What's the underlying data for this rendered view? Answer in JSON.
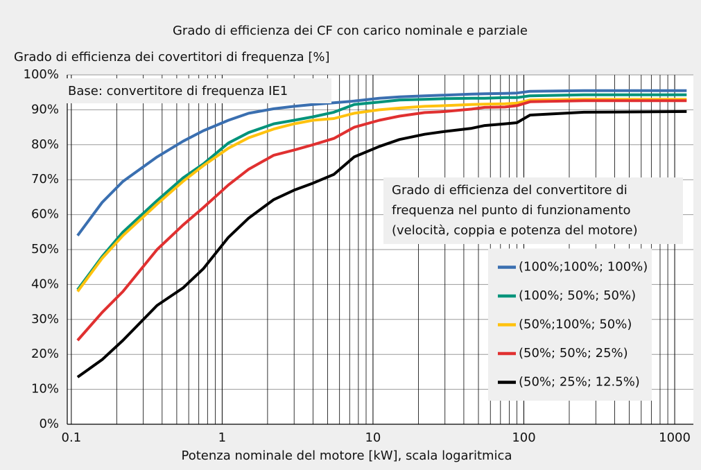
{
  "chart_data": {
    "type": "line",
    "title": "Grado di efficienza dei CF con carico nominale e parziale",
    "y_label": "Grado di efficienza dei covertitori di frequenza [%]",
    "x_label": "Potenza nominale del motore [kW], scala logaritmica",
    "annotations": [
      "Base: convertitore di frequenza IE1"
    ],
    "note_lines": [
      "Grado di efficienza del convertitore di",
      "frequenza nel punto di funzionamento",
      "(velocità, coppia e potenza del motore)"
    ],
    "x_scale": "log",
    "grid": true,
    "legend": "lower right",
    "xlim": [
      0.094,
      1330
    ],
    "xticks": [
      0.1,
      1,
      10,
      100,
      1000
    ],
    "ylim": [
      0,
      100
    ],
    "yticks": [
      {
        "value": 0,
        "label": "0%"
      },
      {
        "value": 10,
        "label": "10%"
      },
      {
        "value": 20,
        "label": "20%"
      },
      {
        "value": 30,
        "label": "30%"
      },
      {
        "value": 40,
        "label": "40%"
      },
      {
        "value": 50,
        "label": "50%"
      },
      {
        "value": 60,
        "label": "60%"
      },
      {
        "value": 70,
        "label": "70%"
      },
      {
        "value": 80,
        "label": "80%"
      },
      {
        "value": 90,
        "label": "90%"
      },
      {
        "value": 100,
        "label": "100%"
      }
    ],
    "x": [
      0.11,
      0.16,
      0.22,
      0.37,
      0.55,
      0.75,
      1.1,
      1.5,
      2.2,
      3,
      4,
      5.5,
      7.5,
      11,
      15,
      22,
      30,
      45,
      55,
      75,
      90,
      110,
      250,
      1200
    ],
    "series": [
      {
        "name": "(100%;100%; 100%)",
        "color": "#3a6fb0",
        "values": [
          54,
          63.5,
          69.5,
          76.5,
          81,
          84,
          87,
          89,
          90.3,
          91,
          91.5,
          92,
          92.5,
          93.3,
          93.7,
          94,
          94.2,
          94.5,
          94.6,
          94.7,
          94.8,
          95.3,
          95.5,
          95.5
        ]
      },
      {
        "name": "(100%; 50%; 50%)",
        "color": "#00937a",
        "values": [
          38.5,
          48,
          55,
          64,
          70.5,
          74.5,
          80.5,
          83.5,
          86,
          87,
          88,
          89.3,
          91.5,
          92.2,
          92.8,
          93,
          93.2,
          93.3,
          93.3,
          93.5,
          93.5,
          94,
          94.3,
          94.3
        ]
      },
      {
        "name": "(50%;100%; 50%)",
        "color": "#ffc20e",
        "values": [
          38,
          47.5,
          54,
          63,
          69.5,
          74,
          79,
          82,
          84.5,
          86,
          87,
          87.5,
          89,
          90,
          90.5,
          91,
          91.2,
          91.5,
          91.6,
          91.7,
          91.9,
          92.8,
          93,
          93
        ]
      },
      {
        "name": "(50%; 50%; 25%)",
        "color": "#e03030",
        "values": [
          24,
          32,
          38,
          50,
          57,
          62,
          68.5,
          73,
          77,
          78.5,
          80,
          81.8,
          85,
          87,
          88.2,
          89.2,
          89.5,
          90.2,
          90.7,
          90.8,
          91.2,
          92.3,
          92.6,
          92.6
        ]
      },
      {
        "name": "(50%; 25%; 12.5%)",
        "color": "#000000",
        "values": [
          13.5,
          18.5,
          24,
          34,
          39,
          44.5,
          53.5,
          59,
          64.3,
          67,
          69,
          71.5,
          76.5,
          79.5,
          81.5,
          83,
          83.8,
          84.7,
          85.5,
          86,
          86.3,
          88.5,
          89.3,
          89.5
        ]
      }
    ]
  }
}
